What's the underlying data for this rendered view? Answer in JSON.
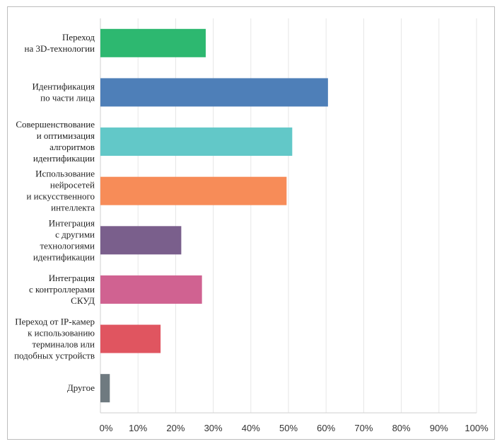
{
  "chart_data": {
    "type": "bar",
    "orientation": "horizontal",
    "title": "",
    "xlabel": "",
    "ylabel": "",
    "categories": [
      [
        "Переход",
        "на 3D-технологии"
      ],
      [
        "Идентификация",
        "по части лица"
      ],
      [
        "Совершенствование",
        "и оптимизация",
        "алгоритмов",
        "идентификации"
      ],
      [
        "Использование",
        "нейросетей",
        "и искусственного",
        "интеллекта"
      ],
      [
        "Интеграция",
        "с другими",
        "технологиями",
        "идентификации"
      ],
      [
        "Интеграция",
        "с контроллерами",
        "СКУД"
      ],
      [
        "Переход от IP-камер",
        "к использованию",
        "терминалов или",
        "подобных устройств"
      ],
      [
        "Другое"
      ]
    ],
    "values": [
      28,
      60.5,
      51,
      49.5,
      21.5,
      27,
      16,
      2.5
    ],
    "colors": [
      "#2db870",
      "#4e7fb8",
      "#62c8c8",
      "#f78c58",
      "#7a5f8c",
      "#d06291",
      "#e05560",
      "#6f7a80"
    ],
    "xlim": [
      0,
      100
    ],
    "x_ticks": [
      "0%",
      "10%",
      "20%",
      "30%",
      "40%",
      "50%",
      "60%",
      "70%",
      "80%",
      "90%",
      "100%"
    ],
    "grid": true,
    "legend": "none"
  }
}
